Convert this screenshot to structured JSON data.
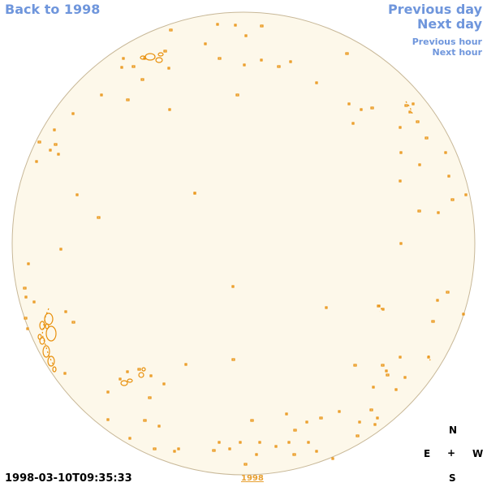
{
  "navigation": {
    "back_year": "Back to 1998",
    "previous_day": "Previous day",
    "next_day": "Next day",
    "previous_hour": "Previous hour",
    "next_hour": "Next hour"
  },
  "observation": {
    "timestamp": "1998-03-10T09:35:33",
    "year_link": "1998"
  },
  "compass": {
    "north": "N",
    "south": "S",
    "east": "E",
    "west": "W",
    "center": "+"
  },
  "colors": {
    "disk_fill": "#fdf8ea",
    "disk_border": "#c8b898",
    "contour": "#e8900c",
    "link": "#6f96dc"
  }
}
